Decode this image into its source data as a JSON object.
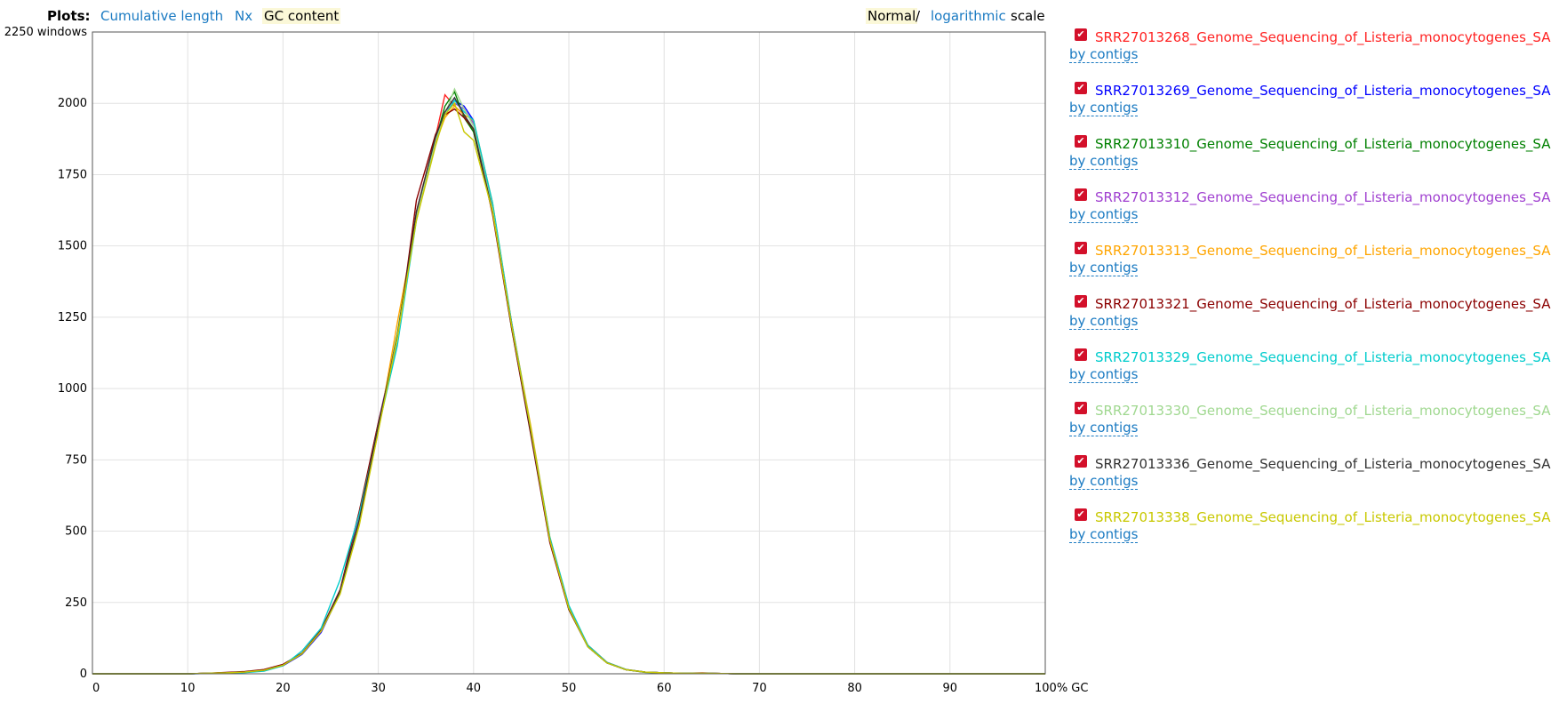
{
  "header": {
    "plots_label": "Plots:",
    "plot_links": [
      "Cumulative length",
      "Nx",
      "GC content"
    ],
    "active_plot": "GC content",
    "scale_normal": "Normal",
    "scale_separator": "/",
    "scale_log": "logarithmic",
    "scale_word": "scale",
    "active_scale": "Normal"
  },
  "colors": {
    "link": "#1a7ac2",
    "active_highlight": "#fbf8d8",
    "checkbox": "#d3102a"
  },
  "chart_data": {
    "type": "line",
    "title": "",
    "xlabel": "",
    "ylabel": "",
    "xlim": [
      0,
      100
    ],
    "ylim": [
      0,
      2250
    ],
    "x_ticks": [
      0,
      10,
      20,
      30,
      40,
      50,
      60,
      70,
      80,
      90,
      100
    ],
    "x_tick_labels": [
      "0",
      "10",
      "20",
      "30",
      "40",
      "50",
      "60",
      "70",
      "80",
      "90",
      "100% GC"
    ],
    "y_ticks": [
      0,
      250,
      500,
      750,
      1000,
      1250,
      1500,
      1750,
      2000,
      2250
    ],
    "y_tick_labels": [
      "0",
      "250",
      "500",
      "750",
      "1000",
      "1250",
      "1500",
      "1750",
      "2000",
      "2250 windows"
    ],
    "grid": true,
    "x": [
      0,
      10,
      12,
      14,
      16,
      18,
      20,
      22,
      24,
      26,
      28,
      30,
      32,
      34,
      36,
      37,
      38,
      39,
      40,
      42,
      44,
      46,
      48,
      50,
      52,
      54,
      56,
      58,
      60,
      62,
      64,
      66,
      68,
      70,
      100
    ],
    "series": [
      {
        "name": "SRR27013268_Genome_Sequencing_of_Listeria_monocytogenes_SA",
        "color": "#ff2222",
        "values": [
          0,
          0,
          2,
          3,
          6,
          12,
          30,
          70,
          150,
          290,
          540,
          870,
          1180,
          1620,
          1880,
          2030,
          1990,
          1960,
          1900,
          1620,
          1220,
          850,
          470,
          230,
          100,
          40,
          15,
          6,
          3,
          2,
          3,
          1,
          0,
          0,
          0
        ]
      },
      {
        "name": "SRR27013269_Genome_Sequencing_of_Listeria_monocytogenes_SA",
        "color": "#0000ff",
        "values": [
          0,
          0,
          1,
          3,
          6,
          12,
          28,
          68,
          145,
          285,
          535,
          860,
          1170,
          1600,
          1880,
          1960,
          2010,
          1990,
          1940,
          1630,
          1230,
          860,
          475,
          230,
          95,
          38,
          14,
          6,
          3,
          2,
          2,
          1,
          0,
          0,
          0
        ]
      },
      {
        "name": "SRR27013310_Genome_Sequencing_of_Listeria_monocytogenes_SA",
        "color": "#008000",
        "values": [
          0,
          0,
          2,
          4,
          7,
          13,
          32,
          72,
          150,
          290,
          540,
          865,
          1190,
          1610,
          1870,
          1990,
          2040,
          1950,
          1900,
          1620,
          1210,
          850,
          470,
          225,
          95,
          38,
          14,
          5,
          3,
          2,
          2,
          1,
          0,
          0,
          0
        ]
      },
      {
        "name": "SRR27013312_Genome_Sequencing_of_Listeria_monocytogenes_SA",
        "color": "#a040d0",
        "values": [
          0,
          0,
          2,
          3,
          6,
          12,
          30,
          70,
          148,
          288,
          560,
          880,
          1180,
          1610,
          1870,
          1970,
          2000,
          1980,
          1930,
          1620,
          1220,
          850,
          470,
          230,
          100,
          40,
          15,
          6,
          3,
          2,
          2,
          1,
          0,
          0,
          0
        ]
      },
      {
        "name": "SRR27013313_Genome_Sequencing_of_Listeria_monocytogenes_SA",
        "color": "#ffa500",
        "values": [
          0,
          0,
          2,
          3,
          6,
          12,
          30,
          70,
          150,
          285,
          530,
          850,
          1230,
          1590,
          1860,
          1950,
          1990,
          1960,
          1940,
          1650,
          1230,
          870,
          480,
          235,
          100,
          40,
          15,
          6,
          3,
          2,
          2,
          1,
          0,
          0,
          0
        ]
      },
      {
        "name": "SRR27013321_Genome_Sequencing_of_Listeria_monocytogenes_SA",
        "color": "#8b0000",
        "values": [
          0,
          0,
          2,
          5,
          8,
          15,
          33,
          72,
          155,
          295,
          570,
          880,
          1160,
          1660,
          1890,
          1960,
          1980,
          1950,
          1910,
          1610,
          1210,
          840,
          460,
          225,
          95,
          38,
          14,
          6,
          3,
          2,
          2,
          1,
          0,
          0,
          0
        ]
      },
      {
        "name": "SRR27013329_Genome_Sequencing_of_Listeria_monocytogenes_SA",
        "color": "#00cccc",
        "values": [
          0,
          0,
          1,
          2,
          4,
          9,
          28,
          80,
          160,
          330,
          560,
          860,
          1150,
          1590,
          1870,
          1960,
          2010,
          1970,
          1940,
          1650,
          1230,
          860,
          480,
          240,
          100,
          40,
          15,
          6,
          3,
          2,
          2,
          1,
          0,
          0,
          0
        ]
      },
      {
        "name": "SRR27013330_Genome_Sequencing_of_Listeria_monocytogenes_SA",
        "color": "#a0d890",
        "values": [
          0,
          0,
          2,
          3,
          6,
          12,
          30,
          70,
          150,
          290,
          540,
          870,
          1170,
          1600,
          1870,
          1960,
          2050,
          1980,
          1920,
          1630,
          1220,
          860,
          470,
          230,
          95,
          38,
          14,
          6,
          3,
          2,
          2,
          1,
          0,
          0,
          0
        ]
      },
      {
        "name": "SRR27013336_Genome_Sequencing_of_Listeria_monocytogenes_SA",
        "color": "#333333",
        "values": [
          0,
          0,
          2,
          3,
          6,
          12,
          30,
          70,
          150,
          290,
          540,
          870,
          1180,
          1620,
          1880,
          1970,
          2020,
          1960,
          1910,
          1620,
          1220,
          850,
          470,
          230,
          95,
          38,
          14,
          6,
          3,
          2,
          2,
          1,
          0,
          0,
          0
        ]
      },
      {
        "name": "SRR27013338_Genome_Sequencing_of_Listeria_monocytogenes_SA",
        "color": "#c8c800",
        "values": [
          0,
          0,
          2,
          3,
          6,
          12,
          30,
          70,
          150,
          280,
          520,
          850,
          1180,
          1590,
          1850,
          1960,
          2000,
          1900,
          1870,
          1620,
          1220,
          860,
          470,
          230,
          95,
          38,
          14,
          6,
          3,
          2,
          2,
          1,
          0,
          0,
          0
        ]
      }
    ]
  },
  "legend": {
    "sub_label": "by contigs"
  }
}
